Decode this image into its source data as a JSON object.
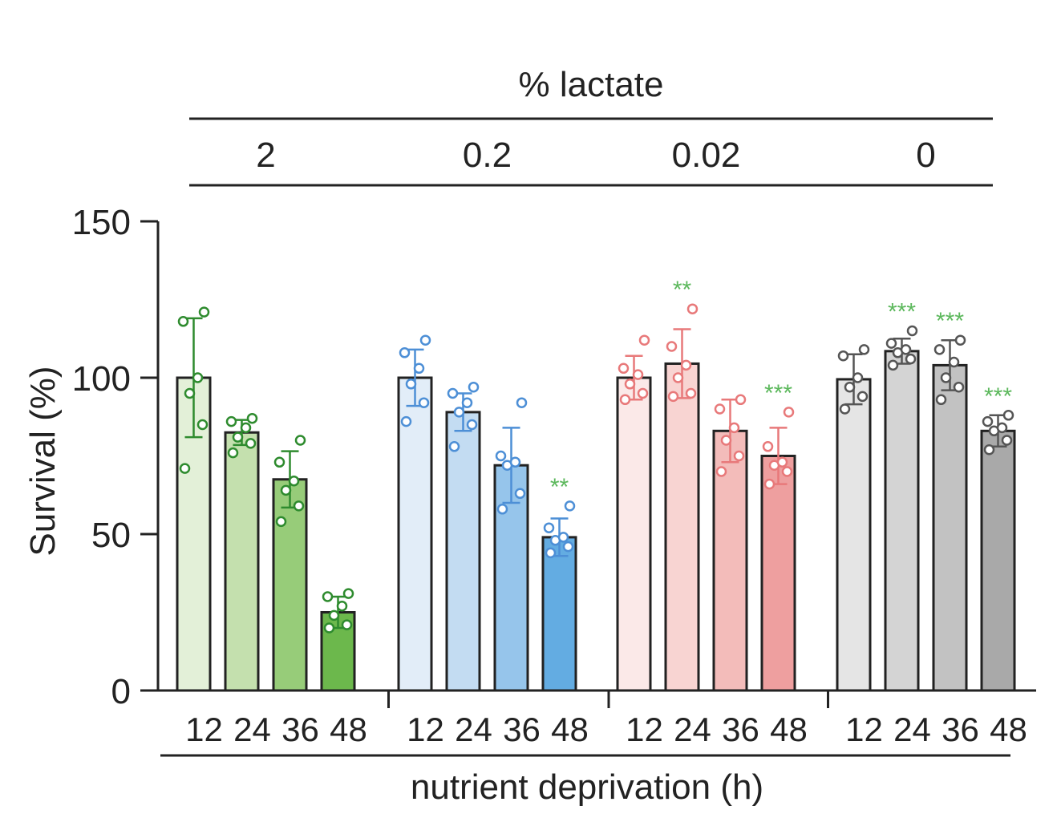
{
  "chart_data": {
    "type": "bar",
    "top_label": "% lactate",
    "ylabel": "Survival (%)",
    "xlabel": "nutrient deprivation (h)",
    "ylim": [
      0,
      150
    ],
    "yticks": [
      "0",
      "50",
      "100",
      "150"
    ],
    "yticks_values": [
      0,
      50,
      100,
      150
    ],
    "categories": [
      "12",
      "24",
      "36",
      "48"
    ],
    "groups": [
      {
        "name": "2",
        "bar_colors": [
          "#e3f0d8",
          "#c4e0ae",
          "#97cc79",
          "#6cb84c"
        ],
        "point_color": "#2e8b2e",
        "bars": [
          {
            "value": 100,
            "sd": 19,
            "points": [
              71,
              85,
              95,
              100,
              118,
              121
            ],
            "sig": ""
          },
          {
            "value": 82.5,
            "sd": 4,
            "points": [
              76,
              79,
              81,
              84,
              86,
              87
            ],
            "sig": ""
          },
          {
            "value": 67.5,
            "sd": 9,
            "points": [
              54,
              59,
              64,
              67,
              73,
              80
            ],
            "sig": ""
          },
          {
            "value": 25,
            "sd": 5,
            "points": [
              20,
              21,
              24,
              27,
              30,
              31
            ],
            "sig": ""
          }
        ]
      },
      {
        "name": "0.2",
        "bar_colors": [
          "#e2edf8",
          "#c3dcf2",
          "#96c5eb",
          "#63ace2"
        ],
        "point_color": "#4d8fd6",
        "bars": [
          {
            "value": 100,
            "sd": 9,
            "points": [
              86,
              92,
              98,
              103,
              108,
              112
            ],
            "sig": ""
          },
          {
            "value": 89,
            "sd": 6,
            "points": [
              78,
              85,
              89,
              92,
              95,
              97
            ],
            "sig": ""
          },
          {
            "value": 72,
            "sd": 12,
            "points": [
              58,
              63,
              72,
              73,
              75,
              92
            ],
            "sig": ""
          },
          {
            "value": 49,
            "sd": 6,
            "points": [
              44,
              46,
              48,
              49,
              52,
              59
            ],
            "sig": "**"
          }
        ]
      },
      {
        "name": "0.02",
        "bar_colors": [
          "#fbe9e8",
          "#f8d4d2",
          "#f3bcba",
          "#ee9f9f"
        ],
        "point_color": "#e8797a",
        "bars": [
          {
            "value": 100,
            "sd": 7,
            "points": [
              93,
              95,
              98,
              101,
              103,
              112
            ],
            "sig": ""
          },
          {
            "value": 104.5,
            "sd": 11,
            "points": [
              94,
              95,
              100,
              104,
              110,
              122
            ],
            "sig": "**"
          },
          {
            "value": 83,
            "sd": 10,
            "points": [
              70,
              75,
              80,
              84,
              90,
              93
            ],
            "sig": ""
          },
          {
            "value": 75,
            "sd": 9,
            "points": [
              66,
              70,
              72,
              73,
              78,
              89
            ],
            "sig": "***"
          }
        ]
      },
      {
        "name": "0",
        "bar_colors": [
          "#e5e5e5",
          "#d4d4d4",
          "#c2c2c2",
          "#a9a9a9"
        ],
        "point_color": "#555555",
        "bars": [
          {
            "value": 99.5,
            "sd": 8,
            "points": [
              90,
              94,
              97,
              100,
              107,
              109
            ],
            "sig": ""
          },
          {
            "value": 108.5,
            "sd": 4,
            "points": [
              104,
              106,
              108,
              109,
              111,
              115
            ],
            "sig": "***"
          },
          {
            "value": 104,
            "sd": 8,
            "points": [
              93,
              97,
              100,
              105,
              109,
              112
            ],
            "sig": "***"
          },
          {
            "value": 83,
            "sd": 5,
            "points": [
              77,
              80,
              83,
              84,
              86,
              88
            ],
            "sig": "***"
          }
        ]
      }
    ],
    "sig_color": "#5cb85c"
  }
}
